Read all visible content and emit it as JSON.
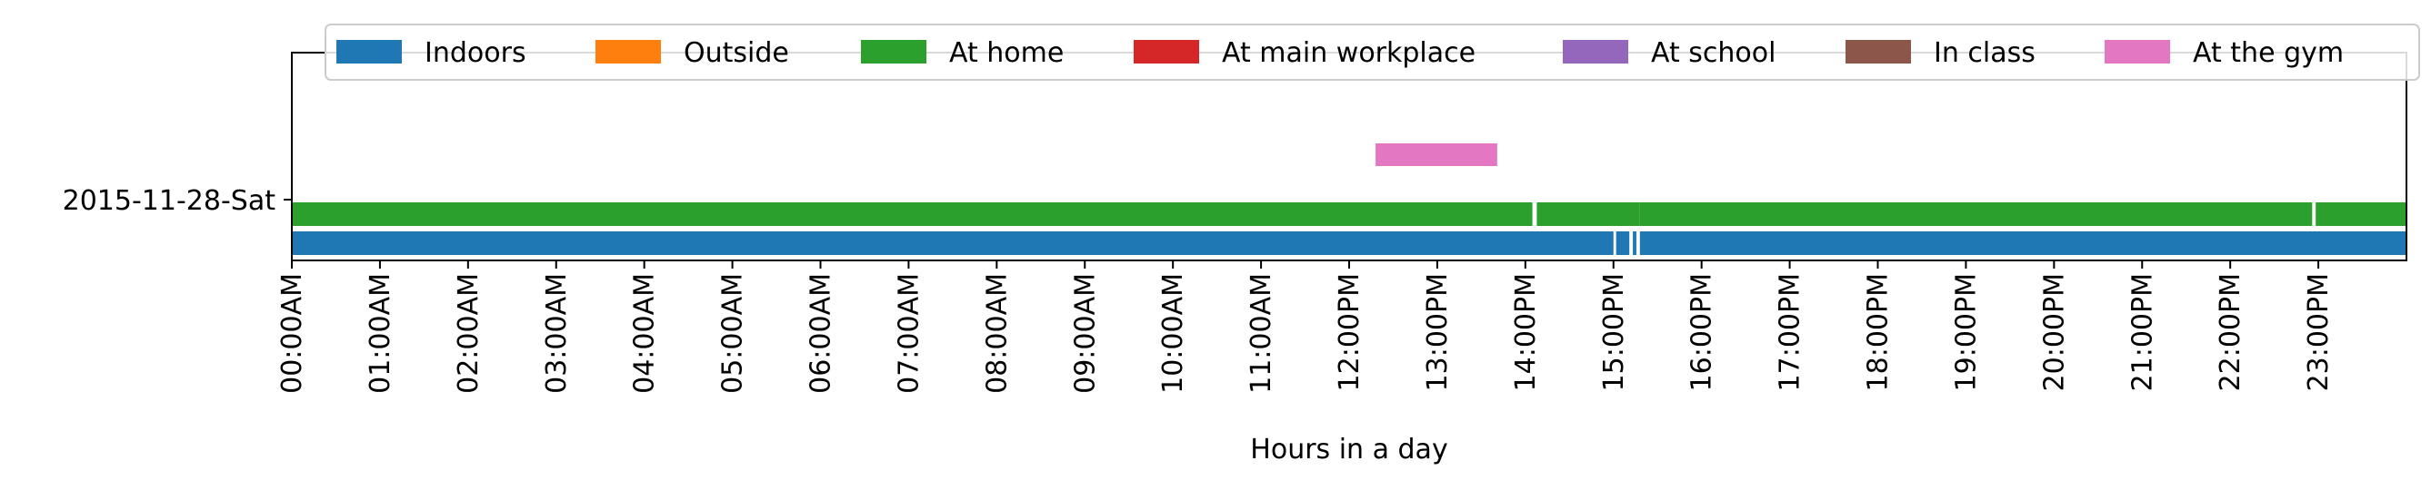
{
  "chart_data": {
    "type": "timeline",
    "day_label": "2015-11-28-Sat",
    "xlabel": "Hours in a day",
    "xlim": [
      0,
      24
    ],
    "x_ticks": [
      {
        "hour": 0,
        "label": "00:00AM"
      },
      {
        "hour": 1,
        "label": "01:00AM"
      },
      {
        "hour": 2,
        "label": "02:00AM"
      },
      {
        "hour": 3,
        "label": "03:00AM"
      },
      {
        "hour": 4,
        "label": "04:00AM"
      },
      {
        "hour": 5,
        "label": "05:00AM"
      },
      {
        "hour": 6,
        "label": "06:00AM"
      },
      {
        "hour": 7,
        "label": "07:00AM"
      },
      {
        "hour": 8,
        "label": "08:00AM"
      },
      {
        "hour": 9,
        "label": "09:00AM"
      },
      {
        "hour": 10,
        "label": "10:00AM"
      },
      {
        "hour": 11,
        "label": "11:00AM"
      },
      {
        "hour": 12,
        "label": "12:00PM"
      },
      {
        "hour": 13,
        "label": "13:00PM"
      },
      {
        "hour": 14,
        "label": "14:00PM"
      },
      {
        "hour": 15,
        "label": "15:00PM"
      },
      {
        "hour": 16,
        "label": "16:00PM"
      },
      {
        "hour": 17,
        "label": "17:00PM"
      },
      {
        "hour": 18,
        "label": "18:00PM"
      },
      {
        "hour": 19,
        "label": "19:00PM"
      },
      {
        "hour": 20,
        "label": "20:00PM"
      },
      {
        "hour": 21,
        "label": "21:00PM"
      },
      {
        "hour": 22,
        "label": "22:00PM"
      },
      {
        "hour": 23,
        "label": "23:00PM"
      }
    ],
    "legend_position": "top",
    "series": [
      {
        "name": "Indoors",
        "color": "#1f77b4",
        "intervals": [
          [
            0,
            15.0
          ],
          [
            15.03,
            15.18
          ],
          [
            15.22,
            15.26
          ],
          [
            15.3,
            24
          ]
        ]
      },
      {
        "name": "Outside",
        "color": "#ff7f0e",
        "intervals": []
      },
      {
        "name": "At home",
        "color": "#2ca02c",
        "intervals": [
          [
            0,
            14.08
          ],
          [
            14.13,
            15.3
          ],
          [
            15.3,
            22.93
          ],
          [
            22.97,
            24
          ]
        ]
      },
      {
        "name": "At main workplace",
        "color": "#d62728",
        "intervals": []
      },
      {
        "name": "At school",
        "color": "#9467bd",
        "intervals": []
      },
      {
        "name": "In class",
        "color": "#8c564b",
        "intervals": []
      },
      {
        "name": "At the gym",
        "color": "#e377c2",
        "intervals": [
          [
            12.3,
            13.68
          ]
        ]
      }
    ]
  }
}
